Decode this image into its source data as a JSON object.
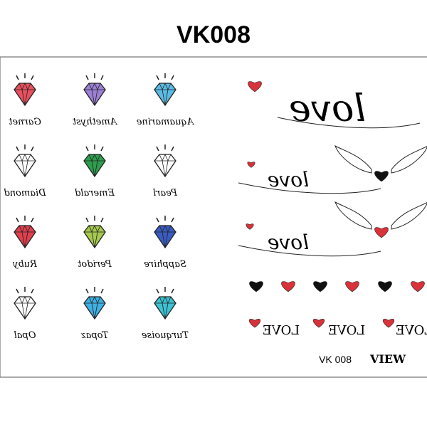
{
  "header": {
    "title": "VK008"
  },
  "gems": [
    {
      "label": "Garnet",
      "color": "#e8505e"
    },
    {
      "label": "Amethyst",
      "color": "#9c80d4"
    },
    {
      "label": "Aquamarine",
      "color": "#5bbbe4"
    },
    {
      "label": "Diamond",
      "color": "#ffffff"
    },
    {
      "label": "Emerald",
      "color": "#2e9e4e"
    },
    {
      "label": "Pearl",
      "color": "#ffffff"
    },
    {
      "label": "Ruby",
      "color": "#e0404e"
    },
    {
      "label": "Peridot",
      "color": "#a6c84e"
    },
    {
      "label": "Sapphire",
      "color": "#3a5cc2"
    },
    {
      "label": "Opal",
      "color": "#ffffff"
    },
    {
      "label": "Topaz",
      "color": "#3fb0e2"
    },
    {
      "label": "Turquoise",
      "color": "#3cc2d2"
    }
  ],
  "script_words": [
    "love",
    "love",
    "love"
  ],
  "caps_words": [
    "LOVE",
    "LOVE",
    "LOVE"
  ],
  "footer": {
    "code": "VK 008",
    "brand": "VIEW"
  }
}
